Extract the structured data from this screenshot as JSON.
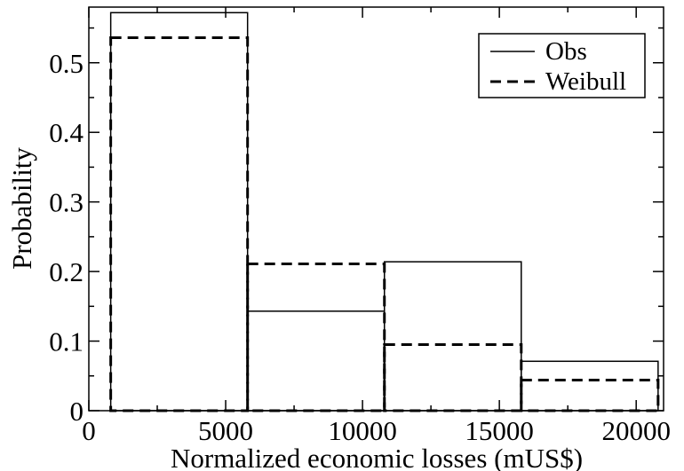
{
  "chart_data": {
    "type": "bar",
    "subtype": "histogram-step",
    "title": "",
    "xlabel": "Normalized economic losses (mUS$)",
    "ylabel": "Probability",
    "xlim": [
      0,
      21000
    ],
    "ylim": [
      0,
      0.58
    ],
    "xticks": [
      0,
      5000,
      10000,
      15000,
      20000
    ],
    "xtick_labels": [
      "0",
      "5000",
      "10000",
      "15000",
      "20000"
    ],
    "yticks": [
      0,
      0.1,
      0.2,
      0.3,
      0.4,
      0.5
    ],
    "ytick_labels": [
      "0",
      "0.1",
      "0.2",
      "0.3",
      "0.4",
      "0.5"
    ],
    "bin_edges": [
      800,
      5800,
      10800,
      15800,
      20800
    ],
    "series": [
      {
        "name": "Obs",
        "style": "solid",
        "values": [
          0.572,
          0.143,
          0.214,
          0.071
        ]
      },
      {
        "name": "Weibull",
        "style": "dashed",
        "values": [
          0.536,
          0.211,
          0.095,
          0.044
        ]
      }
    ],
    "legend": {
      "position": "top-right",
      "entries": [
        "Obs",
        "Weibull"
      ]
    },
    "grid": false,
    "colors": {
      "line": "#000000",
      "background": "#ffffff"
    }
  }
}
